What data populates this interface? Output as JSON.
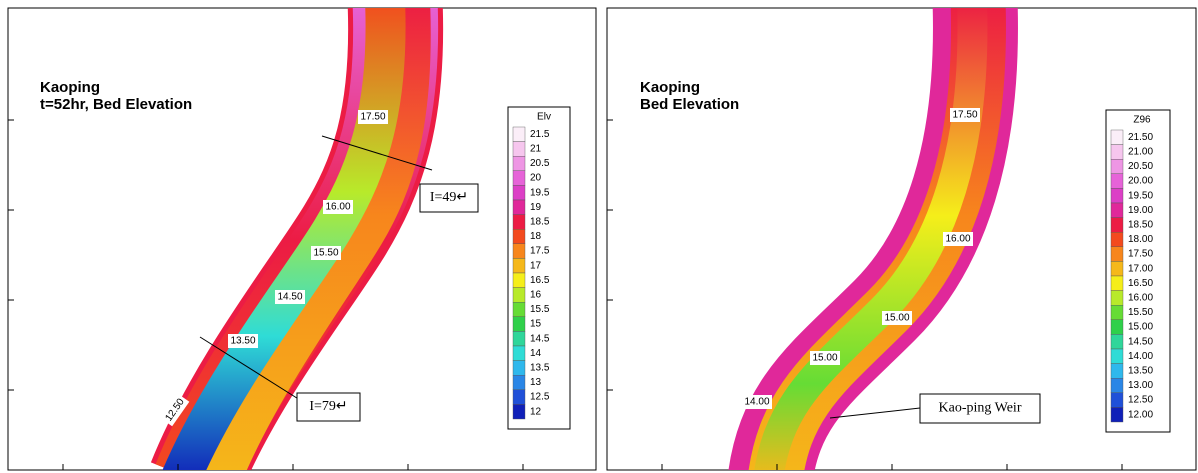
{
  "panels": [
    {
      "title": [
        "Kaoping",
        "t=52hr, Bed Elevation"
      ],
      "legend": {
        "title": "Elv",
        "labels": [
          "21.5",
          "21",
          "20.5",
          "20",
          "19.5",
          "19",
          "18.5",
          "18",
          "17.5",
          "17",
          "16.5",
          "16",
          "15.5",
          "15",
          "14.5",
          "14",
          "13.5",
          "13",
          "12.5",
          "12"
        ]
      },
      "contour_labels": [
        "17.50",
        "16.00",
        "15.50",
        "14.50",
        "13.50",
        "12.50"
      ],
      "annotations": [
        "I=49↵",
        "I=79↵"
      ]
    },
    {
      "title": [
        "Kaoping",
        "Bed Elevation"
      ],
      "legend": {
        "title": "Z96",
        "labels": [
          "21.50",
          "21.00",
          "20.50",
          "20.00",
          "19.50",
          "19.00",
          "18.50",
          "18.00",
          "17.50",
          "17.00",
          "16.50",
          "16.00",
          "15.50",
          "15.00",
          "14.50",
          "14.00",
          "13.50",
          "13.00",
          "12.50",
          "12.00"
        ]
      },
      "contour_labels": [
        "17.50",
        "16.00",
        "15.00",
        "15.00",
        "14.00"
      ],
      "annotations": [
        "Kao-ping Weir"
      ]
    }
  ],
  "legend_colors": [
    "#fbeef8",
    "#f6c6ee",
    "#ee96e4",
    "#e663d8",
    "#dc3fc6",
    "#e0289a",
    "#ec1c44",
    "#f34a1e",
    "#f7861c",
    "#f5b81a",
    "#f5ee1a",
    "#b8ea2a",
    "#66dc35",
    "#2fd04a",
    "#2fd69a",
    "#2fdcd6",
    "#2fb8ec",
    "#2a86e6",
    "#2050d8",
    "#1020b8"
  ]
}
